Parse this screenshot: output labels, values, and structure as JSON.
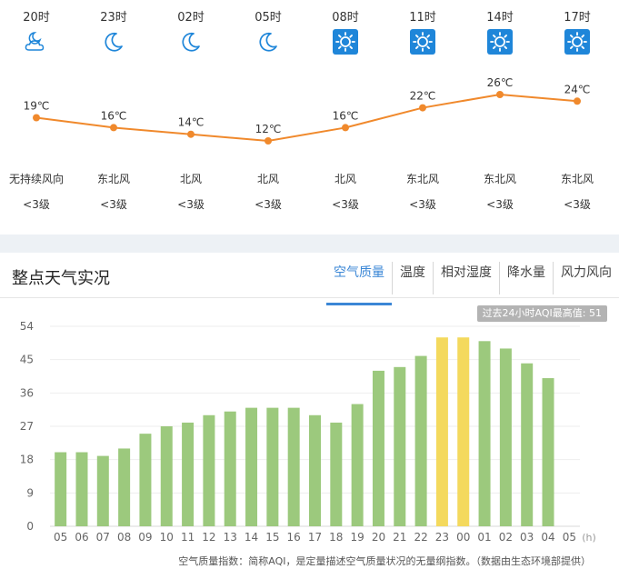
{
  "forecast": {
    "slots": [
      {
        "time": "20时",
        "icon": "partly-cloudy-night-icon",
        "temp": "19℃",
        "wind": "无持续风向",
        "level": "<3级"
      },
      {
        "time": "23时",
        "icon": "moon-icon",
        "temp": "16℃",
        "wind": "东北风",
        "level": "<3级"
      },
      {
        "time": "02时",
        "icon": "moon-icon",
        "temp": "14℃",
        "wind": "北风",
        "level": "<3级"
      },
      {
        "time": "05时",
        "icon": "moon-icon",
        "temp": "12℃",
        "wind": "北风",
        "level": "<3级"
      },
      {
        "time": "08时",
        "icon": "sun-icon",
        "temp": "16℃",
        "wind": "北风",
        "level": "<3级"
      },
      {
        "time": "11时",
        "icon": "sun-icon",
        "temp": "22℃",
        "wind": "东北风",
        "level": "<3级"
      },
      {
        "time": "14时",
        "icon": "sun-icon",
        "temp": "26℃",
        "wind": "东北风",
        "level": "<3级"
      },
      {
        "time": "17时",
        "icon": "sun-icon",
        "temp": "24℃",
        "wind": "东北风",
        "level": "<3级"
      }
    ],
    "temps": [
      19,
      16,
      14,
      12,
      16,
      22,
      26,
      24
    ],
    "line_color": "#f0892c",
    "icon_blue": "#1f86d9"
  },
  "section": {
    "title": "整点天气实况",
    "tabs": [
      "空气质量",
      "温度",
      "相对湿度",
      "降水量",
      "风力风向"
    ],
    "active_tab": 0,
    "max_badge": "过去24小时AQI最高值: 51",
    "footnote": "空气质量指数：简称AQI，是定量描述空气质量状况的无量纲指数。（数据由生态环境部提供）"
  },
  "chart_data": {
    "type": "bar",
    "categories": [
      "05",
      "06",
      "07",
      "08",
      "09",
      "10",
      "11",
      "12",
      "13",
      "14",
      "15",
      "16",
      "17",
      "18",
      "19",
      "20",
      "21",
      "22",
      "23",
      "00",
      "01",
      "02",
      "03",
      "04",
      "05"
    ],
    "values": [
      20,
      20,
      19,
      21,
      25,
      27,
      28,
      30,
      31,
      32,
      32,
      32,
      30,
      28,
      33,
      42,
      43,
      46,
      51,
      51,
      50,
      48,
      44,
      40,
      null
    ],
    "y_ticks": [
      0,
      9,
      18,
      27,
      36,
      45,
      54
    ],
    "ylim": [
      0,
      54
    ],
    "x_unit": "(h)",
    "colors": {
      "good": "#9cc97d",
      "moderate": "#f4d95d"
    },
    "grid": true
  }
}
